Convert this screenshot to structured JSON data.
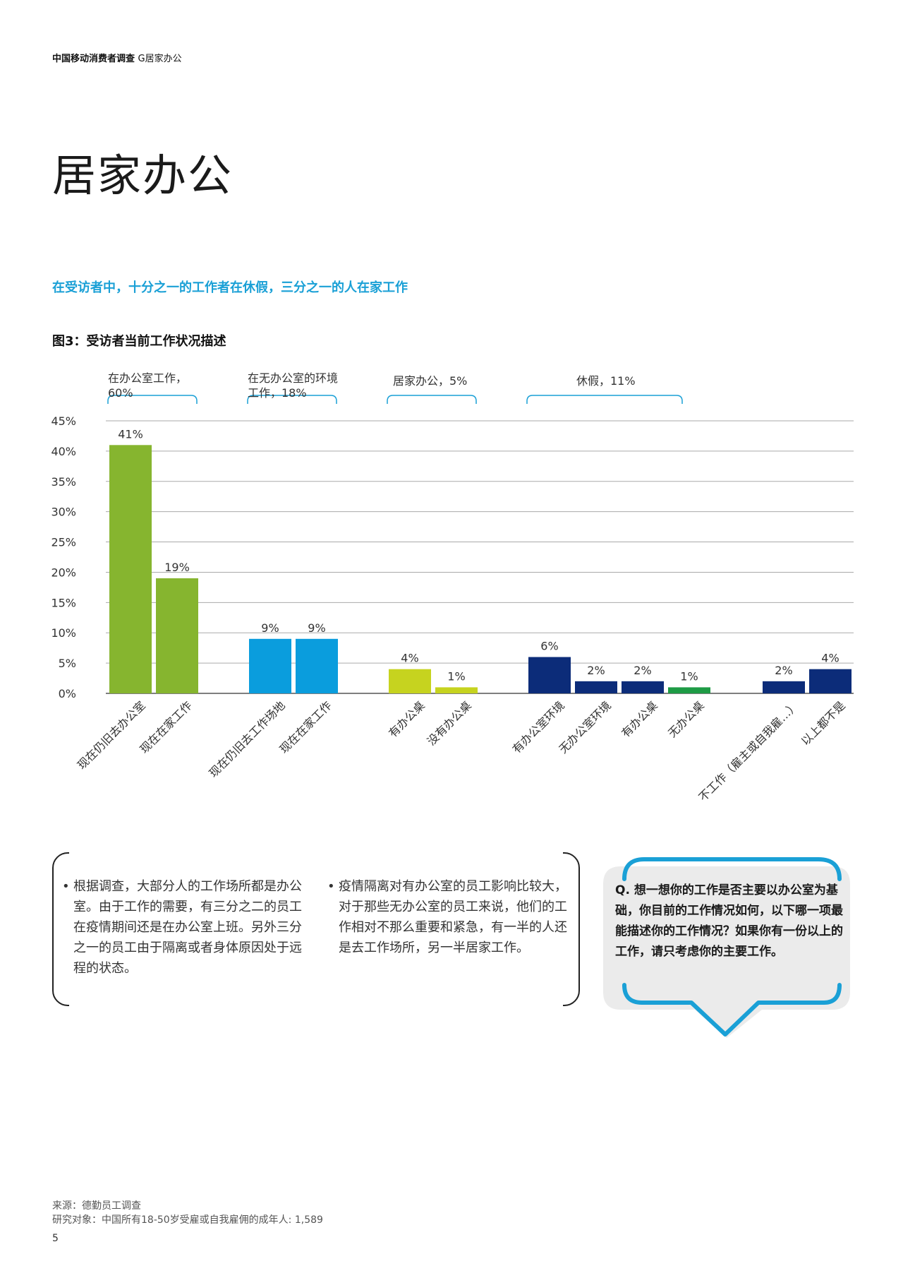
{
  "header": {
    "report": "中国移动消费者调查",
    "section": "G居家办公"
  },
  "title": "居家办公",
  "headline": "在受访者中，十分之一的工作者在休假，三分之一的人在家工作",
  "colors": {
    "green": "#86b52f",
    "blue": "#0a9ddd",
    "lime": "#c6d31f",
    "navy": "#0c2c79",
    "darkgreen": "#1e9b45",
    "accent": "#1aa0d6"
  },
  "chart_data": {
    "type": "bar",
    "title": "图3：受访者当前工作状况描述",
    "xlabel": "",
    "ylabel": "",
    "ylim": [
      0,
      45
    ],
    "yticks": [
      "45%",
      "40%",
      "35%",
      "30%",
      "25%",
      "20%",
      "15%",
      "10%",
      "5%",
      "0%"
    ],
    "grid": true,
    "groups": [
      {
        "label": [
          "在办公室工作，",
          "60%"
        ],
        "color": "#86b52f",
        "bars": [
          {
            "category": "现在仍旧去办公室",
            "value": 41,
            "label": "41%"
          },
          {
            "category": "现在在家工作",
            "value": 19,
            "label": "19%"
          }
        ]
      },
      {
        "label": [
          "在无办公室的环境",
          "工作，18%"
        ],
        "color": "#0a9ddd",
        "bars": [
          {
            "category": "现在仍旧去工作场地",
            "value": 9,
            "label": "9%"
          },
          {
            "category": "现在在家工作",
            "value": 9,
            "label": "9%"
          }
        ]
      },
      {
        "label": [
          "居家办公，5%"
        ],
        "color": "#c6d31f",
        "bars": [
          {
            "category": "有办公桌",
            "value": 4,
            "label": "4%"
          },
          {
            "category": "没有办公桌",
            "value": 1,
            "label": "1%"
          }
        ]
      },
      {
        "label": [
          "休假，11%"
        ],
        "color": "#0c2c79",
        "bars": [
          {
            "category": "有办公室环境",
            "value": 6,
            "label": "6%"
          },
          {
            "category": "无办公室环境",
            "value": 2,
            "label": "2%"
          },
          {
            "category": "有办公桌",
            "value": 2,
            "label": "2%"
          },
          {
            "category": "无办公桌",
            "value": 1,
            "label": "1%",
            "color": "#1e9b45"
          }
        ]
      },
      {
        "label": [],
        "color": "#0c2c79",
        "bars": [
          {
            "category": "不工作（雇主或自我雇…）",
            "value": 2,
            "label": "2%"
          },
          {
            "category": "以上都不是",
            "value": 4,
            "label": "4%"
          }
        ]
      }
    ]
  },
  "notes": [
    "根据调查，大部分人的工作场所都是办公室。由于工作的需要，有三分之二的员工在疫情期间还是在办公室上班。另外三分之一的员工由于隔离或者身体原因处于远程的状态。",
    "疫情隔离对有办公室的员工影响比较大，对于那些无办公室的员工来说，他们的工作相对不那么重要和紧急，有一半的人还是去工作场所，另一半居家工作。"
  ],
  "question": "Q. 想一想你的工作是否主要以办公室为基础，你目前的工作情况如何，以下哪一项最能描述你的工作情况？如果你有一份以上的工作，请只考虑你的主要工作。",
  "source": {
    "line1": "来源：德勤员工调查",
    "line2": "研究对象：中国所有18-50岁受雇或自我雇佣的成年人: 1,589"
  },
  "page_number": "5"
}
